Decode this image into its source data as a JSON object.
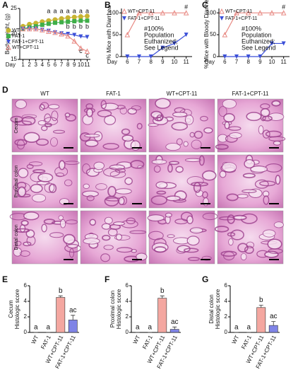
{
  "chart_data": [
    {
      "type": "line",
      "panel": "A",
      "ylabel": "Body weight, (g)",
      "xlabel": "Day",
      "x": [
        1,
        2,
        3,
        4,
        5,
        6,
        7,
        8,
        9,
        10,
        11
      ],
      "xlim": [
        0.5,
        11.5
      ],
      "xticks": [
        1,
        2,
        3,
        4,
        5,
        6,
        7,
        8,
        9,
        10,
        11
      ],
      "ylim": [
        15,
        25
      ],
      "yticks": [
        15,
        20,
        25
      ],
      "legend": "lower-left",
      "series": [
        {
          "name": "WT",
          "color": "#c8b432",
          "marker": "circle",
          "values": [
            21.5,
            21.9,
            22.1,
            22.4,
            22.6,
            22.8,
            23,
            23.2,
            23.3,
            23.4,
            23.5
          ]
        },
        {
          "name": "FAT-1",
          "color": "#3fae49",
          "marker": "square",
          "values": [
            21,
            21.3,
            21.5,
            21.8,
            22,
            22.2,
            22.3,
            22.4,
            22.5,
            22.6,
            22.6
          ]
        },
        {
          "name": "FAT-1+CPT-11",
          "color": "#3b4fd8",
          "marker": "triangle-down",
          "values": [
            21,
            21,
            21,
            20.8,
            20.6,
            20.3,
            20.1,
            20,
            19.8,
            19.5,
            19.4
          ]
        },
        {
          "name": "WT+CPT-11",
          "color": "#e88a84",
          "marker": "triangle-up",
          "values": [
            21,
            21,
            21,
            20.8,
            20.5,
            20.3,
            20,
            19.6,
            18.6,
            17.2,
            16.6
          ]
        }
      ],
      "annotations": [
        {
          "text": "a",
          "x": 5,
          "y": 24.4
        },
        {
          "text": "a",
          "x": 6,
          "y": 24.4
        },
        {
          "text": "a",
          "x": 7,
          "y": 24.4
        },
        {
          "text": "a",
          "x": 8,
          "y": 24.4
        },
        {
          "text": "a",
          "x": 9,
          "y": 24.4
        },
        {
          "text": "a",
          "x": 10,
          "y": 24.4
        },
        {
          "text": "a",
          "x": 11,
          "y": 24.4
        },
        {
          "text": "b",
          "x": 8,
          "y": 21.4
        },
        {
          "text": "b",
          "x": 9,
          "y": 21.4
        },
        {
          "text": "b",
          "x": 10,
          "y": 21.4
        },
        {
          "text": "b",
          "x": 11,
          "y": 21.4
        },
        {
          "text": "c",
          "x": 10,
          "y": 16.6
        },
        {
          "text": "c",
          "x": 11,
          "y": 15.7
        }
      ]
    },
    {
      "type": "line",
      "panel": "B",
      "ylabel": "% Mice with Diarrhea",
      "xlabel": "Day",
      "x": [
        6,
        7,
        8,
        9,
        10,
        11
      ],
      "xlim": [
        5.5,
        11.5
      ],
      "xticks": [
        6,
        7,
        8,
        9,
        10,
        11
      ],
      "ylim": [
        0,
        110
      ],
      "yticks": [
        0,
        50,
        100
      ],
      "legend": "upper-left",
      "series": [
        {
          "name": "WT+CPT-11",
          "color": "#e88a84",
          "marker": "triangle-up",
          "values": [
            50,
            100,
            100,
            100,
            100,
            100
          ]
        },
        {
          "name": "FAT-1+CPT-11",
          "color": "#3b4fd8",
          "marker": "triangle-down",
          "values": [
            0,
            0,
            0,
            20,
            30,
            50
          ]
        }
      ],
      "note": [
        "#100%",
        "Population",
        "Euthanized;",
        "See Legend"
      ],
      "annotations": [
        {
          "text": "#",
          "x": 11,
          "y": 112
        }
      ]
    },
    {
      "type": "line",
      "panel": "C",
      "ylabel": "% Mice with Bloody Diarrhea",
      "xlabel": "Day",
      "x": [
        6,
        7,
        8,
        9,
        10,
        11
      ],
      "xlim": [
        5.5,
        11.5
      ],
      "xticks": [
        6,
        7,
        8,
        9,
        10,
        11
      ],
      "ylim": [
        0,
        110
      ],
      "yticks": [
        0,
        50,
        100
      ],
      "legend": "upper-left",
      "series": [
        {
          "name": "WT+CPT-11",
          "color": "#e88a84",
          "marker": "triangle-up",
          "values": [
            50,
            100,
            100,
            100,
            100,
            100
          ]
        },
        {
          "name": "FAT-1+CPT-11",
          "color": "#3b4fd8",
          "marker": "triangle-down",
          "values": [
            0,
            0,
            0,
            0,
            30,
            30
          ]
        }
      ],
      "note": [
        "#100%",
        "Population",
        "Euthanized;",
        "See Legend"
      ],
      "annotations": [
        {
          "text": "#",
          "x": 11,
          "y": 112
        }
      ]
    },
    {
      "type": "bar",
      "panel": "E",
      "ylabel": [
        "Cecum",
        "Histologic score"
      ],
      "categories": [
        "WT",
        "FAT-1",
        "WT+CPT-11",
        "FAT-1+CPT-11"
      ],
      "colors": [
        "#ffffff",
        "#ffffff",
        "#f4a7a0",
        "#7f84e6"
      ],
      "values": [
        0,
        0,
        4.5,
        1.6
      ],
      "errors": [
        0,
        0,
        0.2,
        0.6
      ],
      "letters": [
        "a",
        "a",
        "b",
        "ac"
      ],
      "ylim": [
        0,
        6
      ],
      "yticks": [
        0,
        2,
        4,
        6
      ]
    },
    {
      "type": "bar",
      "panel": "F",
      "ylabel": [
        "Proximal colon",
        "Histologic score"
      ],
      "categories": [
        "WT",
        "FAT-1",
        "WT+CPT-11",
        "FAT-1+CPT-11"
      ],
      "colors": [
        "#ffffff",
        "#ffffff",
        "#f4a7a0",
        "#7f84e6"
      ],
      "values": [
        0,
        0,
        4.4,
        0.4
      ],
      "errors": [
        0,
        0,
        0.3,
        0.3
      ],
      "letters": [
        "a",
        "a",
        "b",
        "ac"
      ],
      "ylim": [
        0,
        6
      ],
      "yticks": [
        0,
        2,
        4,
        6
      ]
    },
    {
      "type": "bar",
      "panel": "G",
      "ylabel": [
        "Distal colon",
        "Histologic score"
      ],
      "categories": [
        "WT",
        "FAT-1",
        "WT+CPT-11",
        "FAT-1+CPT-11"
      ],
      "colors": [
        "#ffffff",
        "#ffffff",
        "#f4a7a0",
        "#7f84e6"
      ],
      "values": [
        0,
        0,
        3.2,
        0.9
      ],
      "errors": [
        0,
        0,
        0.3,
        0.5
      ],
      "letters": [
        "a",
        "a",
        "b",
        "ac"
      ],
      "ylim": [
        0,
        6
      ],
      "yticks": [
        0,
        2,
        4,
        6
      ]
    }
  ],
  "histology": {
    "panel": "D",
    "columns": [
      "WT",
      "FAT-1",
      "WT+CPT-11",
      "FAT-1+CPT-11"
    ],
    "rows": [
      "Cecum",
      "Proximal colon",
      "Distal colon"
    ]
  }
}
